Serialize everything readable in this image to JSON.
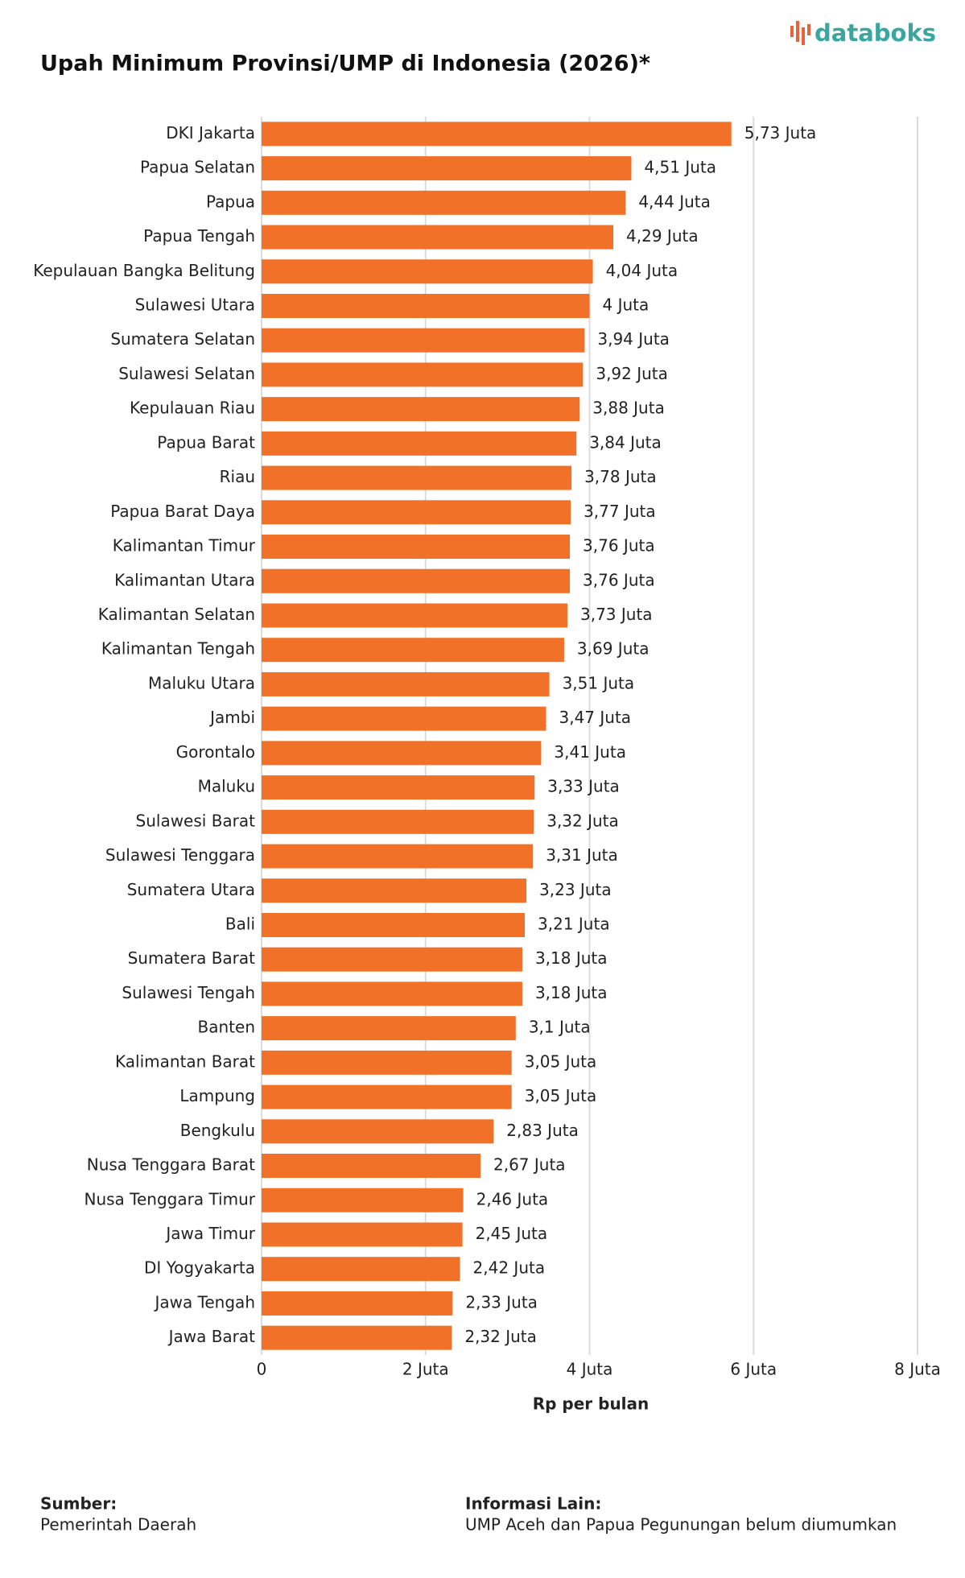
{
  "brand": "databoks",
  "chart_data": {
    "type": "bar",
    "orientation": "horizontal",
    "title": "Upah Minimum Provinsi/UMP di Indonesia (2026)*",
    "x_label": "Rp per bulan",
    "categories": [
      "DKI Jakarta",
      "Papua Selatan",
      "Papua",
      "Papua Tengah",
      "Kepulauan Bangka Belitung",
      "Sulawesi Utara",
      "Sumatera Selatan",
      "Sulawesi Selatan",
      "Kepulauan Riau",
      "Papua Barat",
      "Riau",
      "Papua Barat Daya",
      "Kalimantan Timur",
      "Kalimantan Utara",
      "Kalimantan Selatan",
      "Kalimantan Tengah",
      "Maluku Utara",
      "Jambi",
      "Gorontalo",
      "Maluku",
      "Sulawesi Barat",
      "Sulawesi Tenggara",
      "Sumatera Utara",
      "Bali",
      "Sumatera Barat",
      "Sulawesi Tengah",
      "Banten",
      "Kalimantan Barat",
      "Lampung",
      "Bengkulu",
      "Nusa Tenggara Barat",
      "Nusa Tenggara Timur",
      "Jawa Timur",
      "DI Yogyakarta",
      "Jawa Tengah",
      "Jawa Barat"
    ],
    "values": [
      5.73,
      4.51,
      4.44,
      4.29,
      4.04,
      4,
      3.94,
      3.92,
      3.88,
      3.84,
      3.78,
      3.77,
      3.76,
      3.76,
      3.73,
      3.69,
      3.51,
      3.47,
      3.41,
      3.33,
      3.32,
      3.31,
      3.23,
      3.21,
      3.18,
      3.18,
      3.1,
      3.05,
      3.05,
      2.83,
      2.67,
      2.46,
      2.45,
      2.42,
      2.33,
      2.32
    ],
    "value_labels": [
      "5,73 Juta",
      "4,51 Juta",
      "4,44 Juta",
      "4,29 Juta",
      "4,04 Juta",
      "4 Juta",
      "3,94 Juta",
      "3,92 Juta",
      "3,88 Juta",
      "3,84 Juta",
      "3,78 Juta",
      "3,77 Juta",
      "3,76 Juta",
      "3,76 Juta",
      "3,73 Juta",
      "3,69 Juta",
      "3,51 Juta",
      "3,47 Juta",
      "3,41 Juta",
      "3,33 Juta",
      "3,32 Juta",
      "3,31 Juta",
      "3,23 Juta",
      "3,21 Juta",
      "3,18 Juta",
      "3,18 Juta",
      "3,1 Juta",
      "3,05 Juta",
      "3,05 Juta",
      "2,83 Juta",
      "2,67 Juta",
      "2,46 Juta",
      "2,45 Juta",
      "2,42 Juta",
      "2,33 Juta",
      "2,32 Juta"
    ],
    "color": "#f07127",
    "xlim": [
      0,
      8
    ],
    "xticks": [
      0,
      {
        "value": 2,
        "label": "2 Juta"
      },
      {
        "value": 4,
        "label": "4 Juta"
      },
      {
        "value": 6,
        "label": "6 Juta"
      },
      {
        "value": 8,
        "label": "8 Juta"
      }
    ],
    "grid": true
  },
  "footer": {
    "source_label": "Sumber:",
    "source": "Pemerintah Daerah",
    "info_label": "Informasi Lain:",
    "info": "UMP Aceh dan Papua Pegunungan belum diumumkan"
  }
}
